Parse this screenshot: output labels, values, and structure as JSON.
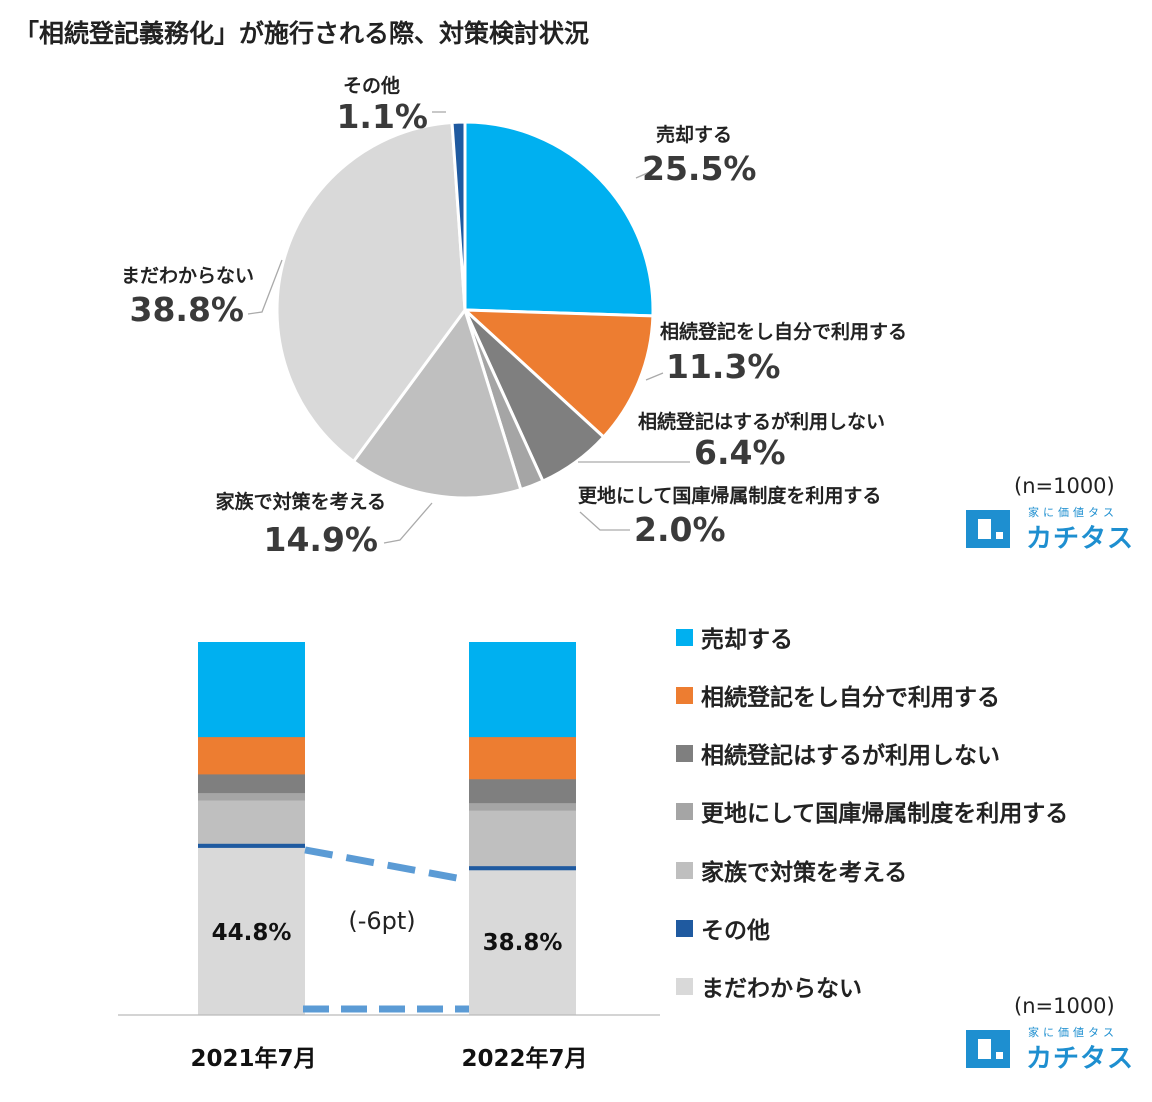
{
  "title": "「相続登記義務化」が施行される際、対策検討状況",
  "colors": {
    "sell": "#00b0f0",
    "self_register": "#ed7d31",
    "register_no_use": "#7f7f7f",
    "national_treasury": "#a5a5a5",
    "family": "#bfbfbf",
    "other": "#1f5aa0",
    "unknown": "#d9d9d9",
    "dash": "#5b9bd5",
    "logo": "#1e8fd0"
  },
  "chart_data": [
    {
      "type": "pie",
      "slices": [
        {
          "key": "sell",
          "label": "売却する",
          "value": 25.5,
          "display": "25.5%"
        },
        {
          "key": "self_register",
          "label": "相続登記をし自分で利用する",
          "value": 11.3,
          "display": "11.3%"
        },
        {
          "key": "register_no_use",
          "label": "相続登記はするが利用しない",
          "value": 6.4,
          "display": "6.4%"
        },
        {
          "key": "national_treasury",
          "label": "更地にして国庫帰属制度を利用する",
          "value": 2.0,
          "display": "2.0%"
        },
        {
          "key": "family",
          "label": "家族で対策を考える",
          "value": 14.9,
          "display": "14.9%"
        },
        {
          "key": "unknown",
          "label": "まだわからない",
          "value": 38.8,
          "display": "38.8%"
        },
        {
          "key": "other",
          "label": "その他",
          "value": 1.1,
          "display": "1.1%"
        }
      ],
      "note": "(n=1000)"
    },
    {
      "type": "bar",
      "stacked": true,
      "categories": [
        "2021年7月",
        "2022年7月"
      ],
      "series": [
        {
          "key": "sell",
          "name": "売却する",
          "values": [
            25.5,
            25.5
          ]
        },
        {
          "key": "self_register",
          "name": "相続登記をし自分で利用する",
          "values": [
            10.0,
            11.3
          ]
        },
        {
          "key": "register_no_use",
          "name": "相続登記はするが利用しない",
          "values": [
            5.0,
            6.4
          ]
        },
        {
          "key": "national_treasury",
          "name": "更地にして国庫帰属制度を利用する",
          "values": [
            2.0,
            2.0
          ]
        },
        {
          "key": "family",
          "name": "家族で対策を考える",
          "values": [
            11.6,
            14.9
          ]
        },
        {
          "key": "other",
          "name": "その他",
          "values": [
            1.1,
            1.1
          ]
        },
        {
          "key": "unknown",
          "name": "まだわからない",
          "values": [
            44.8,
            38.8
          ]
        }
      ],
      "unknown_labels": [
        "44.8%",
        "38.8%"
      ],
      "difference_label": "(-6pt)",
      "legend_order": [
        "sell",
        "self_register",
        "register_no_use",
        "national_treasury",
        "family",
        "other",
        "unknown"
      ],
      "legend_placement": "right",
      "note": "(n=1000)"
    }
  ],
  "logo": {
    "sub": "家に価値タス",
    "main": "カチタス"
  }
}
